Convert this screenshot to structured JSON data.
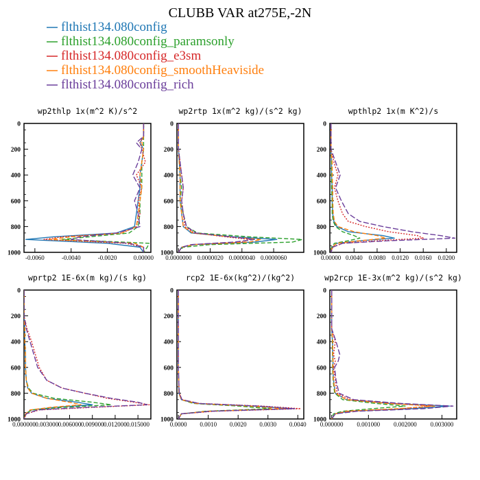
{
  "title": "CLUBB VAR at275E,-2N",
  "legend": [
    {
      "label": "flthist134.080config",
      "color": "#1f77b4",
      "dash": ""
    },
    {
      "label": "flthist134.080config_paramsonly",
      "color": "#2ca02c",
      "dash": "6,3"
    },
    {
      "label": "flthist134.080config_e3sm",
      "color": "#d62728",
      "dash": "2,2"
    },
    {
      "label": "flthist134.080config_smoothHeaviside",
      "color": "#ff7f0e",
      "dash": "6,3"
    },
    {
      "label": "flthist134.080config_rich",
      "color": "#6a3d9a",
      "dash": "8,3"
    }
  ],
  "chart_data": [
    {
      "type": "line",
      "title": "wp2thlp  1x(m^2 K)/s^2",
      "xlim": [
        -0.0066,
        0.0004
      ],
      "ylim": [
        1000,
        0
      ],
      "xticks": [
        "-0.0060",
        "-0.0040",
        "-0.0020",
        "0.00000"
      ],
      "xtick_values": [
        -0.006,
        -0.004,
        -0.002,
        0.0
      ],
      "yticks": [
        0,
        200,
        400,
        600,
        800,
        1000
      ],
      "levels": [
        0,
        100,
        150,
        200,
        300,
        400,
        500,
        600,
        700,
        800,
        850,
        880,
        900,
        930,
        960,
        1000
      ],
      "series": [
        {
          "values": [
            0,
            0,
            -0.0002,
            0,
            -0.0001,
            -0.0002,
            -0.0002,
            -0.0003,
            -0.0004,
            -0.0005,
            -0.0015,
            -0.005,
            -0.0065,
            -0.002,
            -0.0002,
            0
          ]
        },
        {
          "values": [
            0,
            0,
            0,
            0,
            -0.0001,
            -0.0001,
            -0.0001,
            -0.0002,
            -0.0002,
            -0.0003,
            -0.0008,
            -0.003,
            -0.0045,
            0.0003,
            0.0002,
            0
          ]
        },
        {
          "values": [
            0,
            0,
            -0.0002,
            -0.0001,
            0.0001,
            -0.0004,
            -0.0001,
            -0.0003,
            -0.0002,
            -0.0004,
            -0.0012,
            -0.0045,
            -0.0055,
            -0.001,
            0,
            0
          ]
        },
        {
          "values": [
            0,
            0,
            -0.0001,
            0,
            -0.0001,
            -0.0002,
            -0.0001,
            -0.0002,
            -0.0003,
            -0.0004,
            -0.0012,
            -0.004,
            -0.0052,
            -0.0005,
            0,
            0
          ]
        },
        {
          "values": [
            0,
            0,
            -0.0004,
            -0.0001,
            -0.0003,
            -0.0006,
            -0.0002,
            -0.0005,
            -0.0003,
            -0.0002,
            -0.0015,
            -0.0035,
            -0.004,
            -0.0008,
            0,
            0
          ]
        }
      ]
    },
    {
      "type": "line",
      "title": "wp2rtp  1x(m^2 kg)/(s^2 kg)",
      "xlim": [
        -1e-07,
        7.9e-06
      ],
      "ylim": [
        1000,
        0
      ],
      "xticks": [
        "0.0000000",
        "0.0000020",
        "0.0000040",
        "0.0000060"
      ],
      "xtick_values": [
        0.0,
        2e-06,
        4e-06,
        6e-06
      ],
      "yticks": [
        0,
        200,
        400,
        600,
        800,
        1000
      ],
      "levels": [
        0,
        200,
        400,
        500,
        600,
        700,
        800,
        850,
        880,
        900,
        920,
        940,
        960,
        980,
        1000
      ],
      "series": [
        {
          "values": [
            0,
            0,
            1e-07,
            1e-07,
            1e-07,
            2e-07,
            3e-07,
            8e-07,
            3.5e-06,
            6.2e-06,
            4.8e-06,
            1e-06,
            2e-07,
            1e-07,
            0
          ]
        },
        {
          "values": [
            0,
            0,
            1e-07,
            2e-07,
            1e-07,
            3e-07,
            5e-07,
            1.2e-06,
            4.5e-06,
            7.8e-06,
            7.2e-06,
            2e-06,
            3e-07,
            1e-07,
            0
          ]
        },
        {
          "values": [
            0,
            0,
            2e-07,
            3e-07,
            2e-07,
            3e-07,
            4e-07,
            1e-06,
            3e-06,
            4.5e-06,
            4e-06,
            9e-07,
            2e-07,
            1e-07,
            0
          ]
        },
        {
          "values": [
            0,
            0,
            1e-07,
            1e-07,
            1e-07,
            2e-07,
            3e-07,
            9e-07,
            3.2e-06,
            5.2e-06,
            4.5e-06,
            1e-06,
            2e-07,
            1e-07,
            0
          ]
        },
        {
          "values": [
            0,
            0,
            2e-07,
            3e-07,
            2e-07,
            3e-07,
            5e-07,
            1.1e-06,
            3.3e-06,
            4.8e-06,
            3.5e-06,
            8e-07,
            2e-07,
            1e-07,
            0
          ]
        }
      ]
    },
    {
      "type": "line",
      "title": "wpthlp2  1x(m K^2)/s",
      "xlim": [
        -0.0002,
        0.0218
      ],
      "ylim": [
        1000,
        0
      ],
      "xticks": [
        "0.00000",
        "0.0040",
        "0.0080",
        "0.0120",
        "0.0160",
        "0.0200"
      ],
      "xtick_values": [
        0.0,
        0.004,
        0.008,
        0.012,
        0.016,
        0.02
      ],
      "yticks": [
        0,
        200,
        400,
        600,
        800,
        1000
      ],
      "levels": [
        0,
        200,
        300,
        400,
        500,
        600,
        700,
        760,
        800,
        840,
        870,
        890,
        910,
        930,
        960,
        1000
      ],
      "series": [
        {
          "values": [
            0,
            0,
            0.0001,
            0.0001,
            0.0002,
            0.0002,
            0.0003,
            0.0005,
            0.001,
            0.003,
            0.009,
            0.011,
            0.005,
            0.001,
            0.0002,
            0
          ]
        },
        {
          "values": [
            0,
            0,
            0.0001,
            0.0001,
            0.0001,
            0.0002,
            0.0002,
            0.0004,
            0.0008,
            0.002,
            0.004,
            0.005,
            0.003,
            0.0006,
            0.0001,
            0
          ]
        },
        {
          "values": [
            0,
            0,
            0.0005,
            0.0012,
            0.0006,
            0.0012,
            0.002,
            0.003,
            0.006,
            0.01,
            0.015,
            0.016,
            0.008,
            0.002,
            0.0003,
            0
          ]
        },
        {
          "values": [
            0,
            0,
            0.0002,
            0.0002,
            0.0003,
            0.0003,
            0.0004,
            0.0006,
            0.0012,
            0.004,
            0.008,
            0.0095,
            0.005,
            0.001,
            0.0002,
            0
          ]
        },
        {
          "values": [
            0,
            0,
            0.0008,
            0.0016,
            0.0008,
            0.0018,
            0.003,
            0.005,
            0.009,
            0.014,
            0.019,
            0.0215,
            0.01,
            0.002,
            0.0003,
            0
          ]
        }
      ]
    },
    {
      "type": "line",
      "title": "wprtp2  1E-6x(m kg)/(s kg)",
      "xlim": [
        0,
        0.0167
      ],
      "ylim": [
        1000,
        0
      ],
      "xticks": [
        "0.000000",
        "0.003000",
        "0.006000",
        "0.009000",
        "0.012000",
        "0.015000"
      ],
      "xtick_values": [
        0.0,
        0.003,
        0.006,
        0.009,
        0.012,
        0.015
      ],
      "yticks": [
        0,
        200,
        400,
        600,
        800,
        1000
      ],
      "levels": [
        0,
        200,
        300,
        400,
        500,
        600,
        700,
        760,
        800,
        840,
        870,
        890,
        910,
        930,
        960,
        1000
      ],
      "series": [
        {
          "values": [
            0,
            0,
            0.0001,
            0.0001,
            0.0002,
            0.0002,
            0.0003,
            0.0005,
            0.001,
            0.003,
            0.007,
            0.009,
            0.004,
            0.001,
            0.0002,
            0
          ]
        },
        {
          "values": [
            0,
            0,
            0.0001,
            0.0001,
            0.0002,
            0.0002,
            0.0003,
            0.0006,
            0.0012,
            0.004,
            0.009,
            0.0115,
            0.005,
            0.001,
            0.0002,
            0
          ]
        },
        {
          "values": [
            0,
            0,
            0.0004,
            0.001,
            0.0015,
            0.002,
            0.003,
            0.005,
            0.008,
            0.011,
            0.0145,
            0.0165,
            0.009,
            0.002,
            0.0003,
            0
          ]
        },
        {
          "values": [
            0,
            0,
            0.0001,
            0.0001,
            0.0002,
            0.0002,
            0.0003,
            0.0005,
            0.001,
            0.003,
            0.006,
            0.0075,
            0.0035,
            0.0008,
            0.0002,
            0
          ]
        },
        {
          "values": [
            0,
            0,
            0.0003,
            0.0008,
            0.0013,
            0.0018,
            0.003,
            0.005,
            0.008,
            0.0115,
            0.015,
            0.0162,
            0.008,
            0.0018,
            0.0003,
            0
          ]
        }
      ]
    },
    {
      "type": "line",
      "title": "rcp2  1E-6x(kg^2)/(kg^2)",
      "xlim": [
        -5e-05,
        0.0042
      ],
      "ylim": [
        1000,
        0
      ],
      "xticks": [
        "0.0000",
        "0.0010",
        "0.0020",
        "0.0030",
        "0.0040"
      ],
      "xtick_values": [
        0.0,
        0.001,
        0.002,
        0.003,
        0.004
      ],
      "yticks": [
        0,
        200,
        400,
        600,
        800,
        1000
      ],
      "levels": [
        0,
        600,
        700,
        800,
        850,
        880,
        900,
        920,
        940,
        960,
        1000
      ],
      "series": [
        {
          "values": [
            0,
            0,
            1e-05,
            2e-05,
            0.0001,
            0.0006,
            0.0025,
            0.0038,
            0.001,
            0.0001,
            0
          ]
        },
        {
          "values": [
            0,
            0,
            1e-05,
            2e-05,
            0.0001,
            0.0005,
            0.002,
            0.0031,
            0.0009,
            0.0001,
            0
          ]
        },
        {
          "values": [
            0,
            0,
            1e-05,
            3e-05,
            0.00012,
            0.0007,
            0.0028,
            0.0041,
            0.0012,
            0.0001,
            0
          ]
        },
        {
          "values": [
            0,
            0,
            1e-05,
            2e-05,
            0.0001,
            0.0006,
            0.0024,
            0.0036,
            0.001,
            0.0001,
            0
          ]
        },
        {
          "values": [
            0,
            0,
            1e-05,
            3e-05,
            0.00012,
            0.0007,
            0.0027,
            0.0039,
            0.0011,
            0.0001,
            0
          ]
        }
      ]
    },
    {
      "type": "line",
      "title": "wp2rcp  1E-3x(m^2 kg)/(s^2 kg)",
      "xlim": [
        -5e-05,
        0.0034
      ],
      "ylim": [
        1000,
        0
      ],
      "xticks": [
        "0.000000",
        "0.001000",
        "0.002000",
        "0.003000"
      ],
      "xtick_values": [
        0.0,
        0.001,
        0.002,
        0.003
      ],
      "yticks": [
        0,
        200,
        400,
        600,
        800,
        1000
      ],
      "levels": [
        0,
        300,
        400,
        500,
        550,
        600,
        700,
        800,
        850,
        880,
        900,
        920,
        940,
        960,
        1000
      ],
      "series": [
        {
          "values": [
            0,
            0,
            2e-05,
            3e-05,
            4e-05,
            3e-05,
            5e-05,
            0.0001,
            0.0004,
            0.0016,
            0.0032,
            0.0022,
            0.0005,
            0.0001,
            0
          ]
        },
        {
          "values": [
            0,
            0,
            2e-05,
            2e-05,
            3e-05,
            2e-05,
            4e-05,
            8e-05,
            0.0003,
            0.0012,
            0.002,
            0.0011,
            0.0003,
            5e-05,
            0
          ]
        },
        {
          "values": [
            0,
            0,
            0.0001,
            5e-05,
            0.0001,
            5e-05,
            0.0001,
            0.00015,
            0.0005,
            0.0017,
            0.0027,
            0.0019,
            0.0005,
            0.0001,
            0
          ]
        },
        {
          "values": [
            0,
            0,
            3e-05,
            3e-05,
            4e-05,
            3e-05,
            5e-05,
            0.0001,
            0.0004,
            0.0015,
            0.0028,
            0.0018,
            0.0004,
            0.0001,
            0
          ]
        },
        {
          "values": [
            0,
            0,
            0.00012,
            0.00022,
            0.00018,
            8e-05,
            0.00012,
            0.0002,
            0.0006,
            0.0019,
            0.0033,
            0.0025,
            0.0007,
            0.0001,
            0
          ]
        }
      ]
    }
  ]
}
